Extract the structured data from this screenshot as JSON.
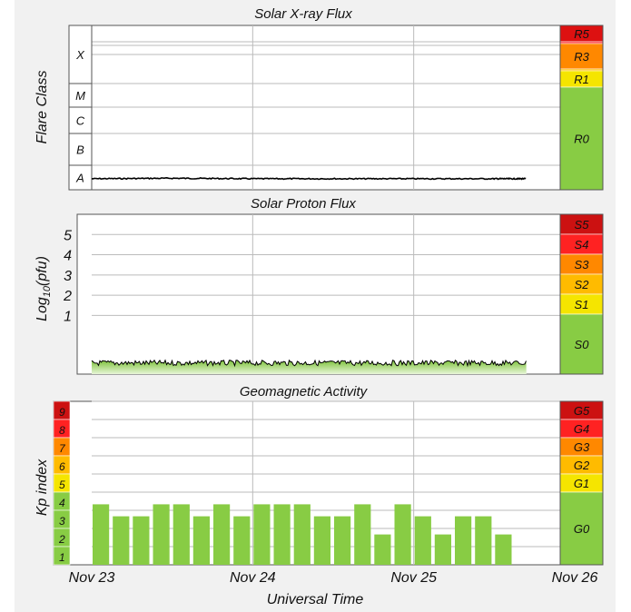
{
  "chart_data": [
    {
      "type": "line",
      "title": "Solar X-ray Flux",
      "ylabel": "Flare Class",
      "y_scale": "log",
      "class_labels": [
        "A",
        "B",
        "C",
        "M",
        "X"
      ],
      "class_ranges_log10_wm2": [
        [
          -8,
          -7
        ],
        [
          -7,
          -6
        ],
        [
          -6,
          -5
        ],
        [
          -5,
          -4
        ],
        [
          -4,
          -2
        ]
      ],
      "x": [
        "Nov 23",
        "Nov 24",
        "Nov 25",
        "Nov 26"
      ],
      "series": [
        {
          "x_days": [
            0,
            0.5,
            1.0,
            1.5,
            2.0,
            2.5,
            2.7
          ],
          "log10_flux_wm2": [
            -7.55,
            -7.53,
            -7.55,
            -7.55,
            -7.55,
            -7.55,
            -7.55
          ]
        }
      ],
      "scale": {
        "labels": [
          "R5",
          "R4",
          "R3",
          "R2",
          "R1",
          "R0"
        ],
        "colors": [
          "#dd1111",
          "#ff2222",
          "#ff8800",
          "#ffbb00",
          "#f5e500",
          "#88cc44"
        ]
      }
    },
    {
      "type": "area",
      "title": "Solar Proton Flux",
      "ylabel": "Log10(pfu)",
      "yticks": [
        "5",
        "4",
        "3",
        "2",
        "1"
      ],
      "ylim": [
        -1.9,
        6.0
      ],
      "series": [
        {
          "level_log10_pfu": -1.35,
          "x_days_end": 2.7
        }
      ],
      "scale": {
        "labels": [
          "S5",
          "S4",
          "S3",
          "S2",
          "S1",
          "S0"
        ],
        "colors": [
          "#cc1111",
          "#ff2222",
          "#ff8800",
          "#ffbb00",
          "#f5e500",
          "#88cc44"
        ]
      }
    },
    {
      "type": "bar",
      "title": "Geomagnetic Activity",
      "ylabel": "Kp index",
      "kp_labels": [
        "9",
        "8",
        "7",
        "6",
        "5",
        "4",
        "3",
        "2",
        "1"
      ],
      "kp_colors": [
        "#cc1111",
        "#ff2222",
        "#ff8800",
        "#ffbb00",
        "#f5e500",
        "#88cc44",
        "#88cc44",
        "#88cc44",
        "#88cc44"
      ],
      "ylim": [
        0,
        9
      ],
      "bar_interval_hours": 3,
      "values": [
        3.33,
        2.67,
        2.67,
        3.33,
        3.33,
        2.67,
        3.33,
        2.67,
        3.33,
        3.33,
        3.33,
        2.67,
        2.67,
        3.33,
        1.67,
        3.33,
        2.67,
        1.67,
        2.67,
        2.67,
        1.67
      ],
      "scale": {
        "labels": [
          "G5",
          "G4",
          "G3",
          "G2",
          "G1",
          "G0"
        ],
        "colors": [
          "#cc1111",
          "#ff2222",
          "#ff8800",
          "#ffbb00",
          "#f5e500",
          "#88cc44"
        ]
      },
      "xticks": [
        "Nov 23",
        "Nov 24",
        "Nov 25",
        "Nov 26"
      ],
      "xlabel": "Universal Time"
    }
  ]
}
